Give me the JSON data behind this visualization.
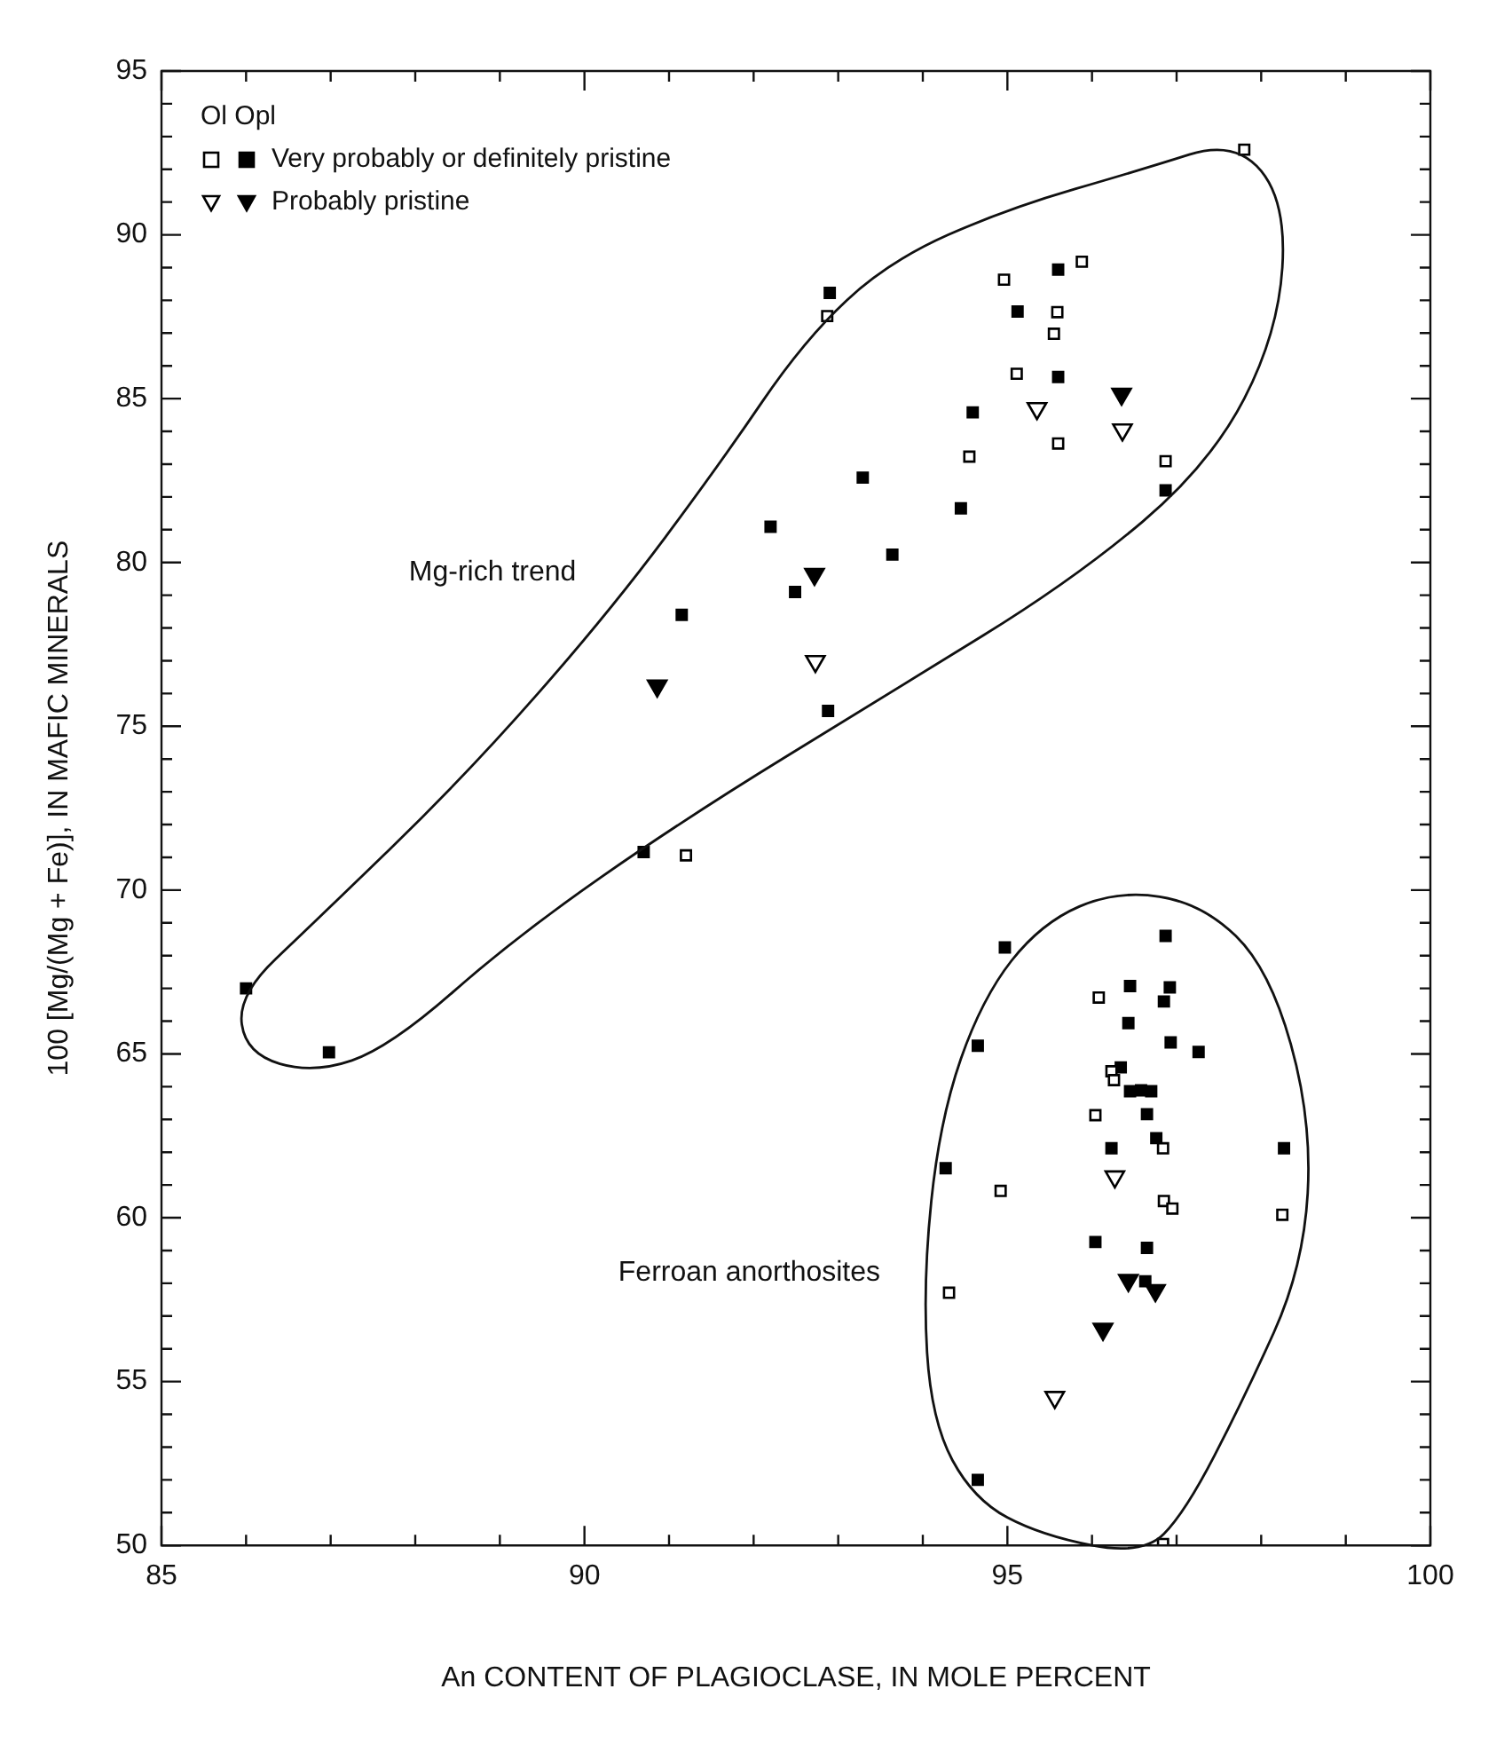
{
  "chart_data": {
    "type": "scatter",
    "xlabel": "An CONTENT OF PLAGIOCLASE, IN MOLE PERCENT",
    "ylabel": "100 [Mg/(Mg + Fe)], IN MAFIC MINERALS",
    "legend_title": "Ol Opl",
    "legend": "top left",
    "grid": false,
    "xlim": [
      85,
      100
    ],
    "ylim": [
      50,
      95
    ],
    "xticks": [
      85,
      {
        "value": 86,
        "label": null
      },
      {
        "value": 87,
        "label": null
      },
      {
        "value": 88,
        "label": null
      },
      {
        "value": 89,
        "label": null
      },
      90,
      {
        "value": 91,
        "label": null
      },
      {
        "value": 92,
        "label": null
      },
      {
        "value": 93,
        "label": null
      },
      {
        "value": 94,
        "label": null
      },
      95,
      {
        "value": 96,
        "label": null
      },
      {
        "value": 97,
        "label": null
      },
      {
        "value": 98,
        "label": null
      },
      {
        "value": 99,
        "label": null
      },
      100
    ],
    "yticks": [
      50,
      {
        "value": 51,
        "label": null
      },
      {
        "value": 52,
        "label": null
      },
      {
        "value": 53,
        "label": null
      },
      {
        "value": 54,
        "label": null
      },
      55,
      {
        "value": 56,
        "label": null
      },
      {
        "value": 57,
        "label": null
      },
      {
        "value": 58,
        "label": null
      },
      {
        "value": 59,
        "label": null
      },
      60,
      {
        "value": 61,
        "label": null
      },
      {
        "value": 62,
        "label": null
      },
      {
        "value": 63,
        "label": null
      },
      {
        "value": 64,
        "label": null
      },
      65,
      {
        "value": 66,
        "label": null
      },
      {
        "value": 67,
        "label": null
      },
      {
        "value": 68,
        "label": null
      },
      {
        "value": 69,
        "label": null
      },
      70,
      {
        "value": 71,
        "label": null
      },
      {
        "value": 72,
        "label": null
      },
      {
        "value": 73,
        "label": null
      },
      {
        "value": 74,
        "label": null
      },
      75,
      {
        "value": 76,
        "label": null
      },
      {
        "value": 77,
        "label": null
      },
      {
        "value": 78,
        "label": null
      },
      {
        "value": 79,
        "label": null
      },
      80,
      {
        "value": 81,
        "label": null
      },
      {
        "value": 82,
        "label": null
      },
      {
        "value": 83,
        "label": null
      },
      {
        "value": 84,
        "label": null
      },
      85,
      {
        "value": 86,
        "label": null
      },
      {
        "value": 87,
        "label": null
      },
      {
        "value": 88,
        "label": null
      },
      {
        "value": 89,
        "label": null
      },
      90,
      {
        "value": 91,
        "label": null
      },
      {
        "value": 92,
        "label": null
      },
      {
        "value": 93,
        "label": null
      },
      {
        "value": 94,
        "label": null
      },
      95
    ],
    "annotations": [
      "Mg-rich trend",
      "Ferroan anorthosites"
    ],
    "series": [
      {
        "color": "#ffffff",
        "marker": "square",
        "x": [
          91.2,
          92.87,
          94.96,
          95.88,
          95.59,
          95.55,
          95.11,
          94.55,
          95.6,
          96.87,
          97.8,
          96.08,
          96.23,
          96.26,
          96.04,
          96.84,
          94.92,
          96.85,
          96.95,
          98.25,
          94.31,
          96.84
        ],
        "values": [
          71.06,
          87.52,
          88.63,
          89.18,
          87.64,
          86.98,
          85.76,
          83.23,
          83.63,
          83.09,
          92.6,
          66.72,
          64.47,
          64.2,
          63.13,
          62.12,
          60.82,
          60.51,
          60.28,
          60.09,
          57.71,
          50.04
        ]
      },
      {
        "name": "Very probably or definitely pristine",
        "color": "#000000",
        "marker": "square",
        "x": [
          86.0,
          86.98,
          90.7,
          91.15,
          92.49,
          92.88,
          93.64,
          92.2,
          93.29,
          94.45,
          92.9,
          95.6,
          95.12,
          95.6,
          94.59,
          96.87,
          94.97,
          96.87,
          96.45,
          96.92,
          96.85,
          96.43,
          94.65,
          96.93,
          97.26,
          96.34,
          96.45,
          96.58,
          96.7,
          96.65,
          96.76,
          96.23,
          98.27,
          94.27,
          96.04,
          96.65,
          96.63,
          94.65
        ],
        "values": [
          67.0,
          65.05,
          71.16,
          78.4,
          79.1,
          75.47,
          80.24,
          81.09,
          82.59,
          81.65,
          88.23,
          88.94,
          87.66,
          85.66,
          84.58,
          82.2,
          68.25,
          68.6,
          67.07,
          67.03,
          66.6,
          65.94,
          65.25,
          65.35,
          65.06,
          64.59,
          63.86,
          63.89,
          63.86,
          63.16,
          62.43,
          62.12,
          62.12,
          61.51,
          59.26,
          59.08,
          58.06,
          52.0
        ]
      },
      {
        "color": "#ffffff",
        "marker": "triangle",
        "x": [
          92.73,
          95.35,
          96.36,
          96.27,
          95.56
        ],
        "values": [
          76.98,
          84.7,
          84.05,
          61.25,
          54.52
        ]
      },
      {
        "name": "Probably pristine",
        "color": "#000000",
        "marker": "triangle",
        "x": [
          90.86,
          92.72,
          96.35,
          96.43,
          96.75,
          96.13
        ],
        "values": [
          76.23,
          79.64,
          85.14,
          58.09,
          57.78,
          56.6
        ]
      }
    ]
  }
}
